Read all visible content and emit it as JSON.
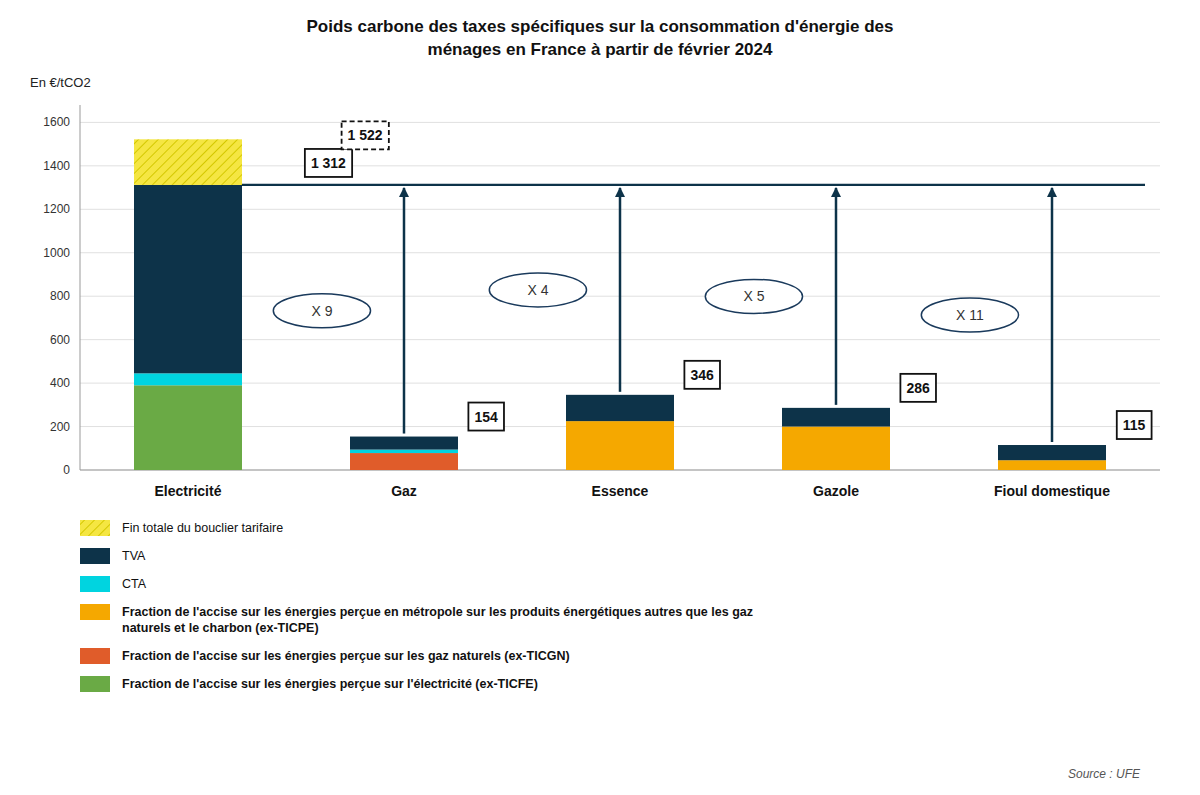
{
  "chart_data": {
    "type": "bar",
    "stacked": true,
    "title": "Poids carbone des taxes spécifiques sur la consommation d'énergie des\nménages en France à partir de février 2024",
    "y_label": "En €/tCO2",
    "categories": [
      "Electricité",
      "Gaz",
      "Essence",
      "Gazole",
      "Fioul domestique"
    ],
    "series": [
      {
        "name": "Fin totale du bouclier tarifaire",
        "color": "#f5e642",
        "values": [
          210,
          null,
          null,
          null,
          null
        ]
      },
      {
        "name": "TVA",
        "color": "#0d3349",
        "values": [
          867,
          60,
          121,
          86,
          70
        ]
      },
      {
        "name": "CTA",
        "color": "#00d4e0",
        "values": [
          55,
          16,
          null,
          null,
          null
        ]
      },
      {
        "name": "Fraction de l'accise sur les énergies perçue en métropole sur les produits énergétiques autres que les gaz\nnaturels et le charbon (ex-TICPE)",
        "color": "#f5a800",
        "values": [
          null,
          null,
          225,
          200,
          45
        ]
      },
      {
        "name": "Fraction de l'accise sur les énergies perçue sur les gaz naturels (ex-TICGN)",
        "color": "#e05c2a",
        "values": [
          null,
          78,
          null,
          null,
          null
        ]
      },
      {
        "name": "Fraction de l'accise sur les énergies perçue sur l'électricité (ex-TICFE)",
        "color": "#6aaa45",
        "values": [
          390,
          null,
          null,
          null,
          null
        ]
      }
    ],
    "totals": {
      "values": [
        1312,
        154,
        346,
        286,
        115
      ],
      "value_labels": [
        "1 312",
        "154",
        "346",
        "286",
        "115"
      ]
    },
    "hatched_total": {
      "value": 1522,
      "label": "1 522"
    },
    "reference_line": 1312,
    "multipliers": [
      null,
      "X 9",
      "X 4",
      "X 5",
      "X 11"
    ],
    "source": "Source : UFE",
    "ylim": [
      0,
      1680
    ],
    "yticks": [
      0,
      200,
      400,
      600,
      800,
      1000,
      1200,
      1400,
      1600
    ],
    "grid": true,
    "legend": "bottom"
  }
}
